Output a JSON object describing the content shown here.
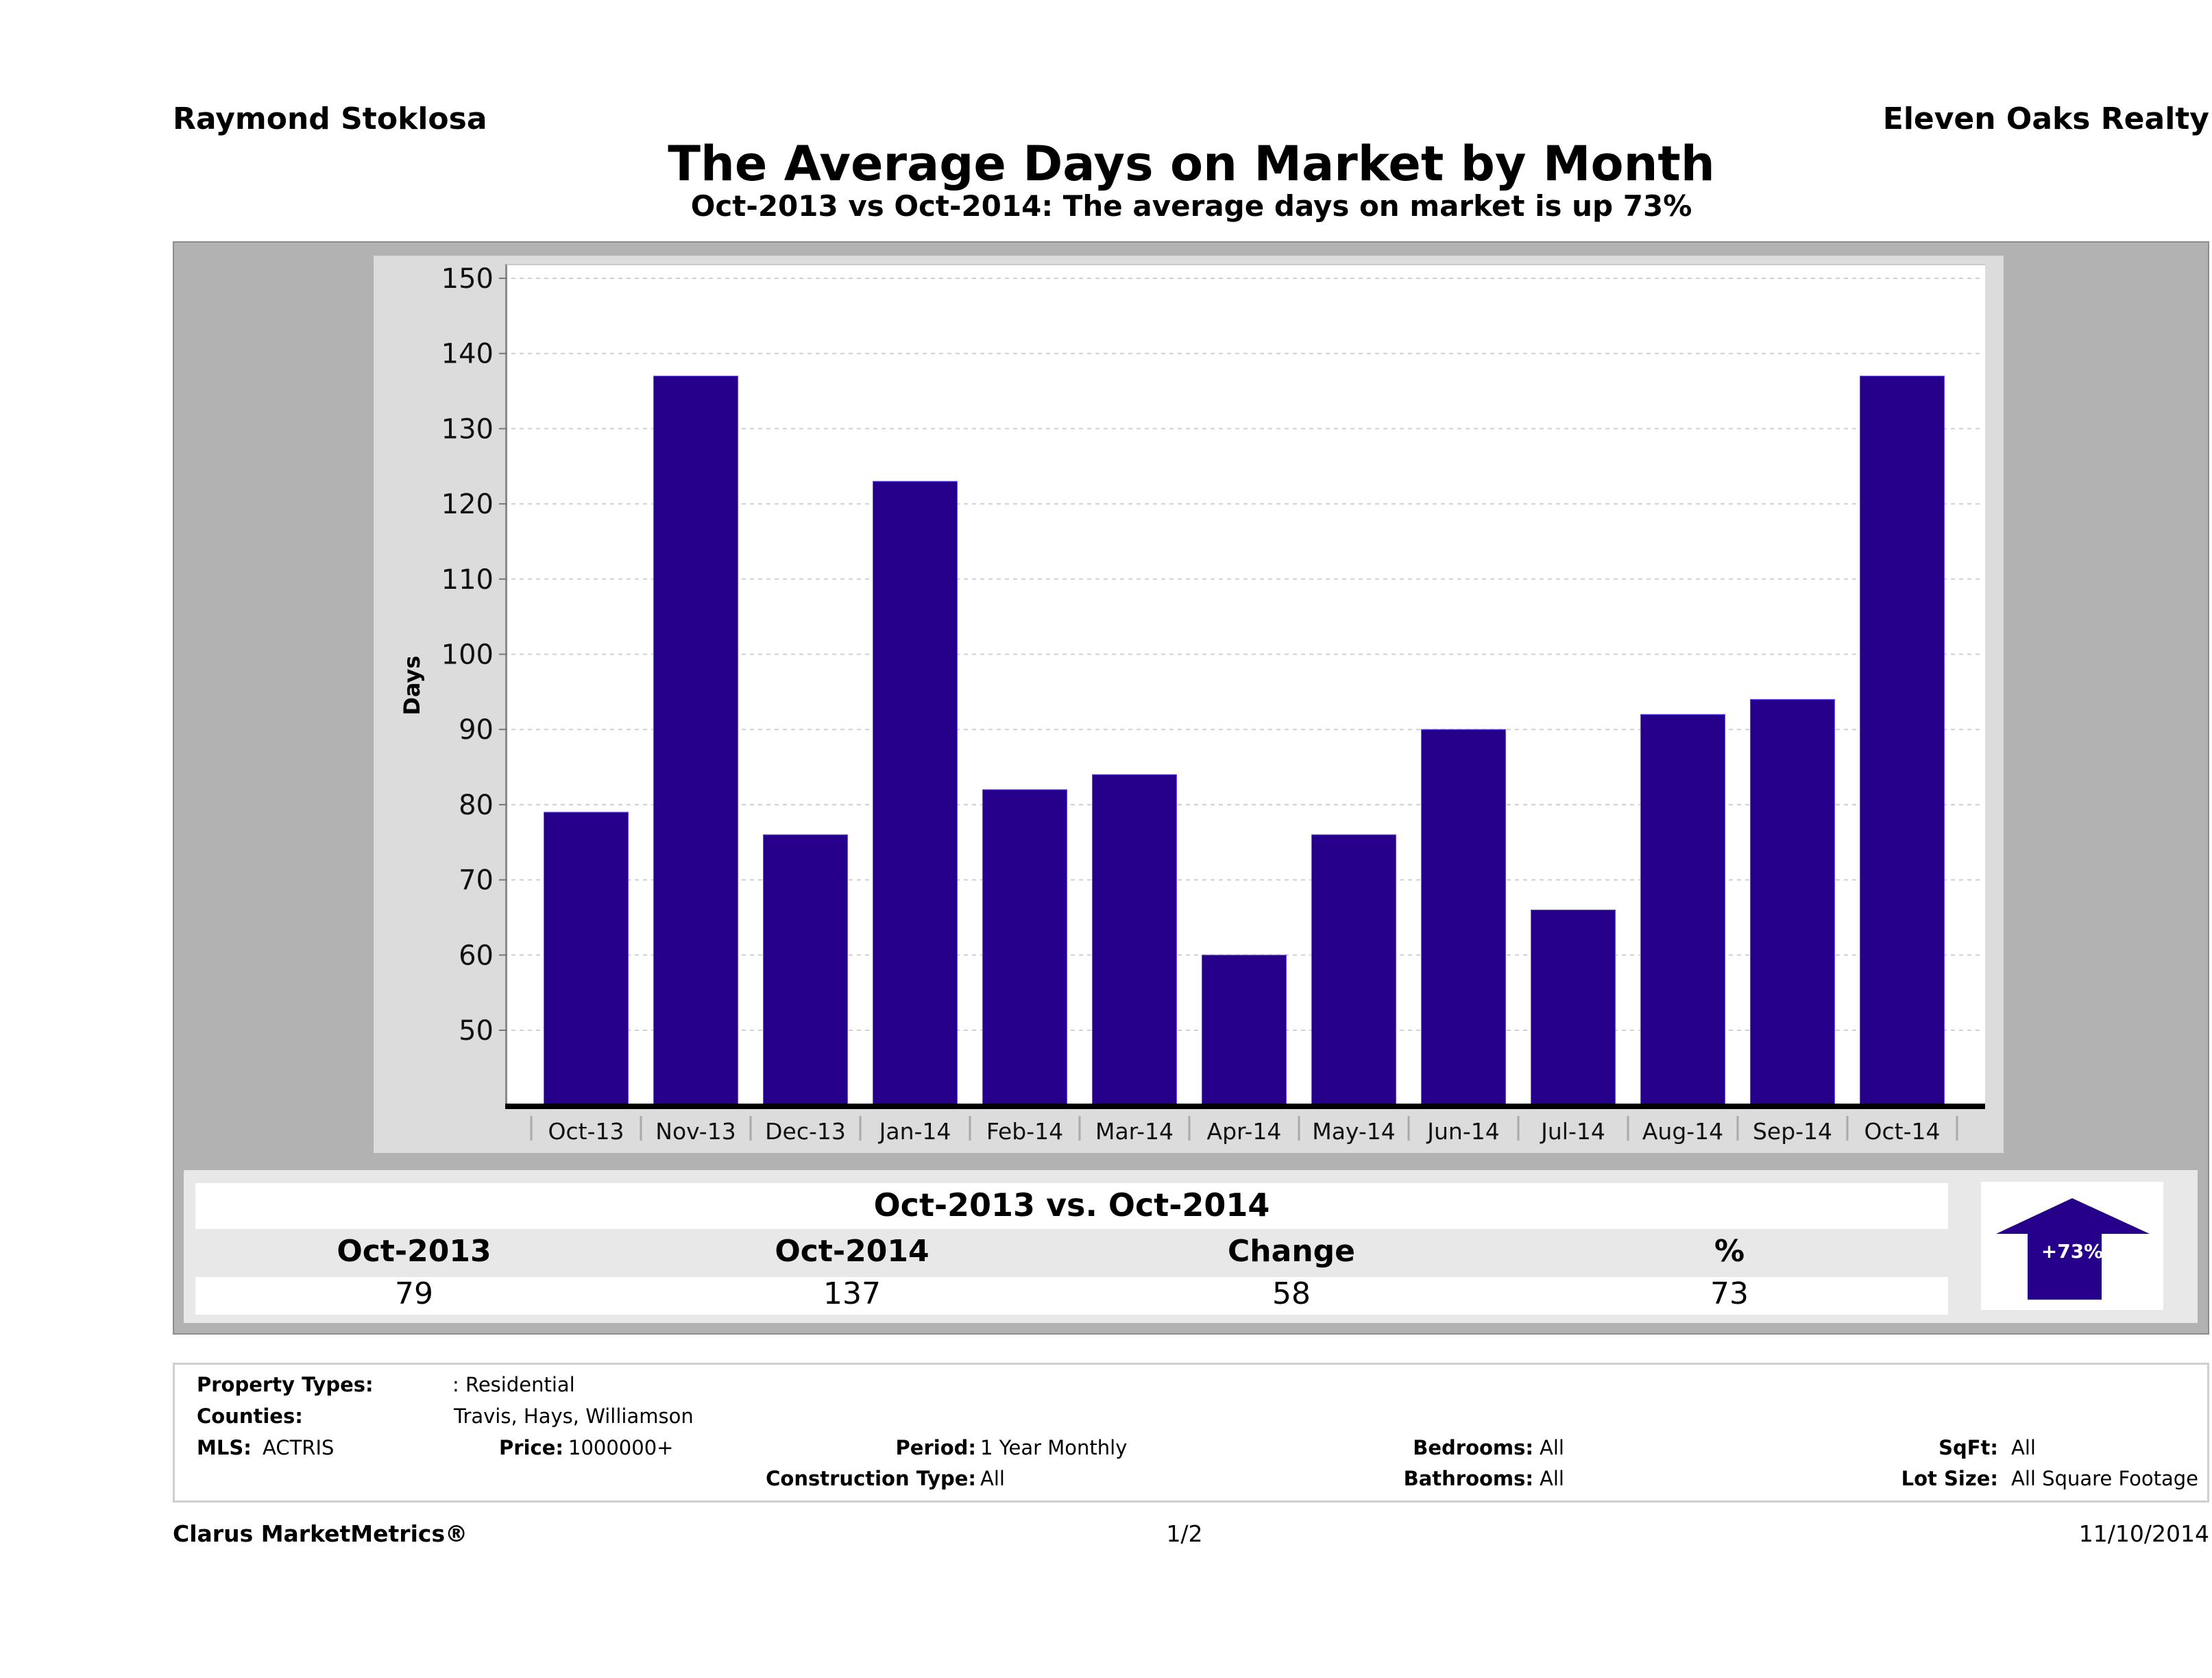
{
  "header": {
    "agent": "Raymond Stoklosa",
    "company": "Eleven Oaks Realty",
    "title": "The Average Days on Market by Month",
    "subtitle": "Oct-2013 vs Oct-2014: The average days on market is up 73%"
  },
  "chart_data": {
    "type": "bar",
    "title": "The Average Days on Market by Month",
    "xlabel": "",
    "ylabel": "Days",
    "ylim": [
      40,
      152
    ],
    "yticks": [
      50,
      60,
      70,
      80,
      90,
      100,
      110,
      120,
      130,
      140,
      150
    ],
    "grid": true,
    "legend": "none",
    "bar_color": "#26008a",
    "categories": [
      "Oct-13",
      "Nov-13",
      "Dec-13",
      "Jan-14",
      "Feb-14",
      "Mar-14",
      "Apr-14",
      "May-14",
      "Jun-14",
      "Jul-14",
      "Aug-14",
      "Sep-14",
      "Oct-14"
    ],
    "values": [
      79,
      137,
      76,
      123,
      82,
      84,
      60,
      76,
      90,
      66,
      92,
      94,
      137
    ]
  },
  "summary": {
    "title": "Oct-2013 vs. Oct-2014",
    "columns": [
      "Oct-2013",
      "Oct-2014",
      "Change",
      "%"
    ],
    "values": [
      "79",
      "137",
      "58",
      "73"
    ],
    "badge": "+73%",
    "badge_color": "#26008a",
    "direction": "up-arrow-icon"
  },
  "info": {
    "property_types_label": "Property Types:",
    "property_types_value": ": Residential",
    "counties_label": "Counties:",
    "counties_value": "Travis, Hays, Williamson",
    "mls_label": "MLS:",
    "mls_value": "ACTRIS",
    "price_label": "Price:",
    "price_value": "1000000+",
    "period_label": "Period:",
    "period_value": "1 Year Monthly",
    "construction_label": "Construction Type:",
    "construction_value": "All",
    "bedrooms_label": "Bedrooms:",
    "bedrooms_value": "All",
    "bathrooms_label": "Bathrooms:",
    "bathrooms_value": "All",
    "sqft_label": "SqFt:",
    "sqft_value": "All",
    "lotsize_label": "Lot Size:",
    "lotsize_value": "All Square Footage"
  },
  "footer": {
    "brand": "Clarus MarketMetrics®",
    "page": "1/2",
    "date": "11/10/2014"
  }
}
